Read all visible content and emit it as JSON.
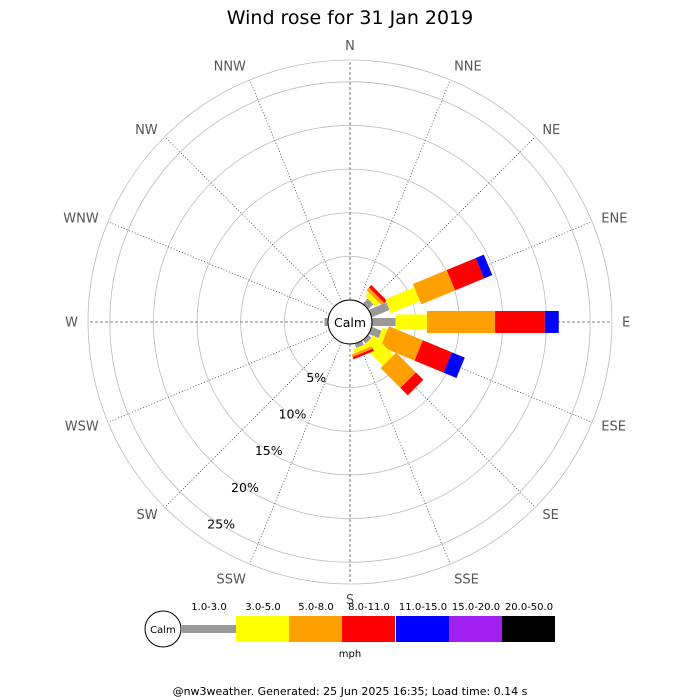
{
  "chart_data": {
    "type": "wind-rose",
    "title": "Wind rose for 31 Jan 2019",
    "directions": [
      "N",
      "NNE",
      "NE",
      "ENE",
      "E",
      "ESE",
      "SE",
      "SSE",
      "S",
      "SSW",
      "SW",
      "WSW",
      "W",
      "WNW",
      "NW",
      "NNW"
    ],
    "ring_labels": [
      "5%",
      "10%",
      "15%",
      "20%",
      "25%"
    ],
    "ring_values": [
      5,
      10,
      15,
      20,
      25
    ],
    "rmax": 27.5,
    "calm_label": "Calm",
    "speed_bins": [
      "1.0-3.0",
      "3.0-5.0",
      "5.0-8.0",
      "8.0-11.0",
      "11.0-15.0",
      "15.0-20.0",
      "20.0-50.0"
    ],
    "bin_colors": [
      "#999999",
      "#ffff00",
      "#ff9f00",
      "#ff0000",
      "#0000ff",
      "#a020f0",
      "#000000"
    ],
    "units": "mph",
    "series": [
      {
        "direction": "NE",
        "values": [
          0.8,
          0.6,
          0.4,
          0.4,
          0.0,
          0.0,
          0.0
        ]
      },
      {
        "direction": "ENE",
        "values": [
          2.2,
          3.6,
          4.2,
          3.6,
          1.0,
          0.0,
          0.0
        ]
      },
      {
        "direction": "E",
        "values": [
          2.7,
          3.6,
          7.8,
          5.7,
          1.6,
          0.0,
          0.0
        ]
      },
      {
        "direction": "ESE",
        "values": [
          1.2,
          0.6,
          4.2,
          3.6,
          1.6,
          0.0,
          0.0
        ]
      },
      {
        "direction": "SE",
        "values": [
          0.5,
          3.2,
          3.2,
          1.2,
          0.0,
          0.0,
          0.0
        ]
      },
      {
        "direction": "SSE",
        "values": [
          0.5,
          0.5,
          0.3,
          0.3,
          0.0,
          0.0,
          0.0
        ]
      },
      {
        "direction": "W",
        "values": [
          0.4,
          0.0,
          0.0,
          0.0,
          0.0,
          0.0,
          0.0
        ]
      }
    ]
  },
  "footer": "@nw3weather. Generated: 25 Jun 2025 16:35; Load time: 0.14 s"
}
